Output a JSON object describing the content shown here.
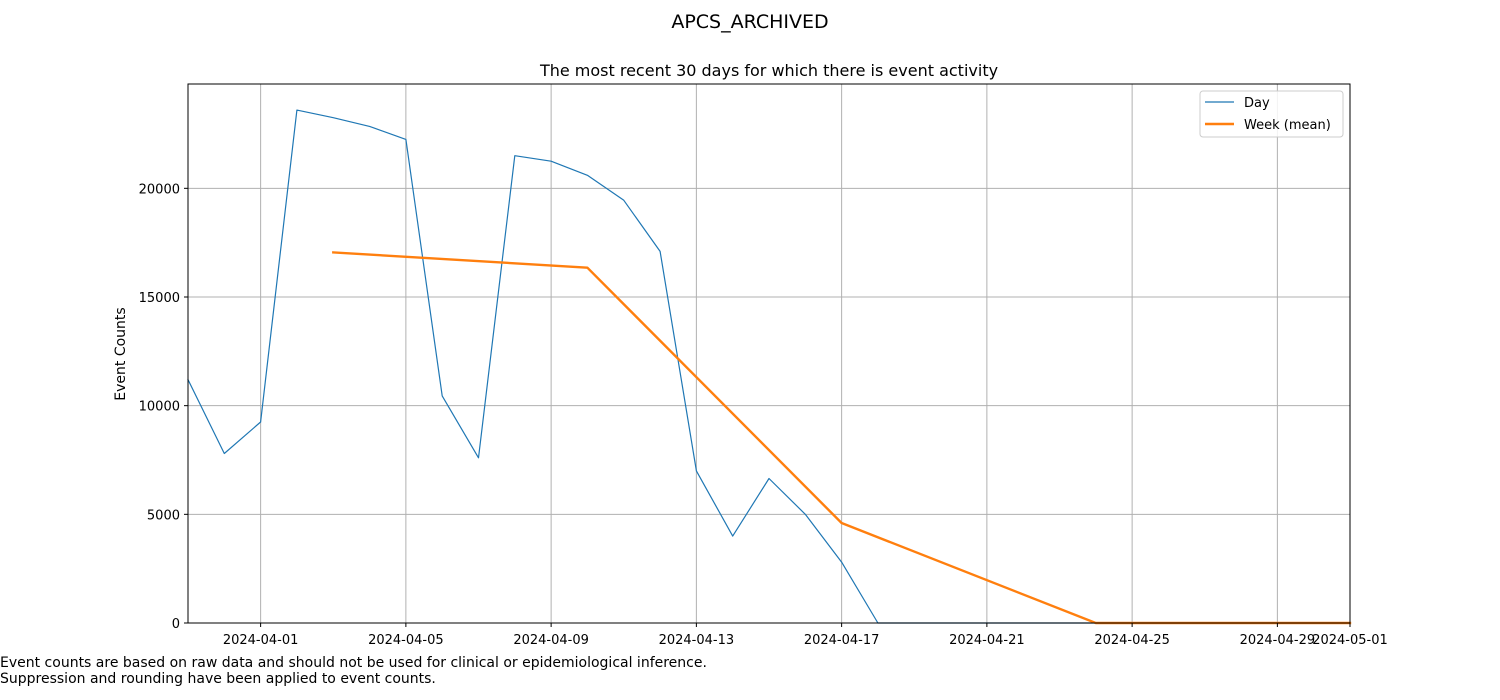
{
  "suptitle": "APCS_ARCHIVED",
  "notes": [
    "Event counts are based on raw data and should not be used for clinical or epidemiological inference.",
    "Suppression and rounding have been applied to event counts."
  ],
  "chart_data": {
    "type": "line",
    "title": "The most recent 30 days for which there is event activity",
    "xlabel": "",
    "ylabel": "Event Counts",
    "xlim": [
      "2024-03-30",
      "2024-05-01"
    ],
    "ylim": [
      0,
      24800
    ],
    "grid": true,
    "legend_position": "top-right",
    "x_ticks": [
      "2024-04-01",
      "2024-04-05",
      "2024-04-09",
      "2024-04-13",
      "2024-04-17",
      "2024-04-21",
      "2024-04-25",
      "2024-04-29",
      "2024-05-01"
    ],
    "y_ticks": [
      0,
      5000,
      10000,
      15000,
      20000
    ],
    "series": [
      {
        "name": "Day",
        "color": "#1f77b4",
        "line_width": "thin",
        "x": [
          "2024-03-30",
          "2024-03-31",
          "2024-04-01",
          "2024-04-02",
          "2024-04-03",
          "2024-04-04",
          "2024-04-05",
          "2024-04-06",
          "2024-04-07",
          "2024-04-08",
          "2024-04-09",
          "2024-04-10",
          "2024-04-11",
          "2024-04-12",
          "2024-04-13",
          "2024-04-14",
          "2024-04-15",
          "2024-04-16",
          "2024-04-17",
          "2024-04-18",
          "2024-04-19",
          "2024-04-20",
          "2024-04-21",
          "2024-04-22",
          "2024-04-23",
          "2024-04-24",
          "2024-04-25",
          "2024-04-26",
          "2024-04-27",
          "2024-04-28",
          "2024-04-29",
          "2024-04-30",
          "2024-05-01"
        ],
        "y": [
          11200,
          7800,
          9250,
          23600,
          23250,
          22850,
          22250,
          10450,
          7600,
          21500,
          21250,
          20600,
          19450,
          17100,
          7000,
          4000,
          6650,
          5000,
          2800,
          0,
          0,
          0,
          0,
          0,
          0,
          0,
          0,
          0,
          0,
          0,
          0,
          0,
          0
        ]
      },
      {
        "name": "Week (mean)",
        "color": "#ff7f0e",
        "line_width": "thick",
        "x": [
          "2024-04-03",
          "2024-04-10",
          "2024-04-17",
          "2024-04-24",
          "2024-05-01"
        ],
        "y": [
          17050,
          16350,
          4600,
          0,
          0
        ]
      }
    ]
  }
}
